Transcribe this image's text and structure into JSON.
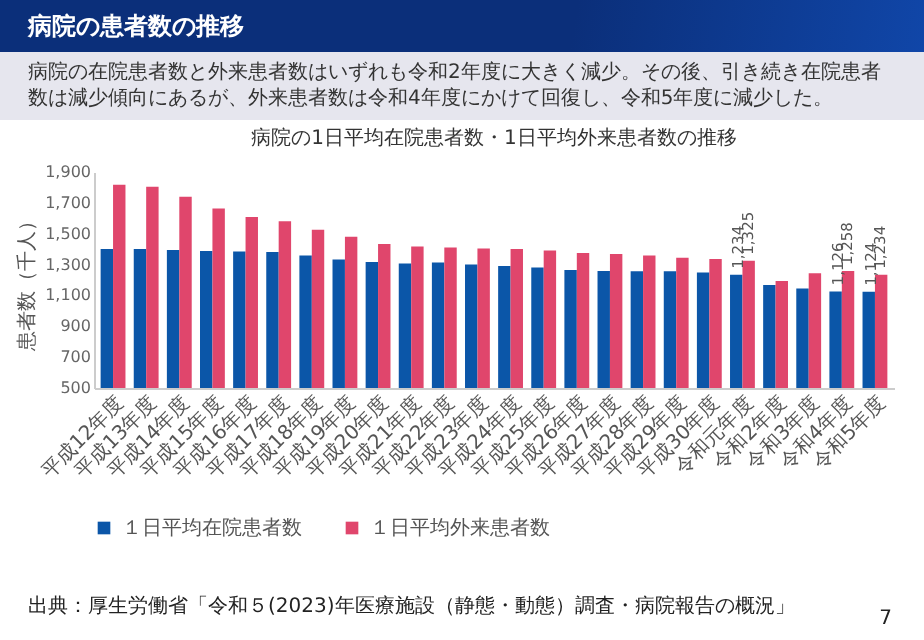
{
  "chart_data": {
    "type": "bar",
    "title": "病院の患者数の推移",
    "subtitle": "病院の1日平均在院患者数・1日平均外来患者数の推移",
    "annotations": [
      "病院の在院患者数と外来患者数はいずれも令和2年度に大きく減少。その後、引き続き在院患者数は減少傾向にあるが、外来患者数は令和4年度にかけて回復し、令和5年度に減少した。",
      "出典：厚生労働省「令和５(2023)年医療施設（静態・動態）調査・病院報告の概況」",
      "7"
    ],
    "ylabel": "患者数（千人）",
    "categories": [
      "平成12年度",
      "平成13年度",
      "平成14年度",
      "平成15年度",
      "平成16年度",
      "平成17年度",
      "平成18年度",
      "平成19年度",
      "平成20年度",
      "平成21年度",
      "平成22年度",
      "平成23年度",
      "平成24年度",
      "平成25年度",
      "平成26年度",
      "平成27年度",
      "平成28年度",
      "平成29年度",
      "平成30年度",
      "令和元年度",
      "令和2年度",
      "令和3年度",
      "令和4年度",
      "令和5年度"
    ],
    "series": [
      {
        "name": "１日平均在院患者数",
        "color": "#0b56a8",
        "values": [
          1401,
          1401,
          1394,
          1388,
          1384,
          1381,
          1358,
          1333,
          1317,
          1307,
          1314,
          1301,
          1291,
          1281,
          1265,
          1259,
          1256,
          1256,
          1249,
          1234,
          1167,
          1145,
          1126,
          1124
        ],
        "value_labels": [
          null,
          null,
          null,
          null,
          null,
          null,
          null,
          null,
          null,
          null,
          null,
          null,
          null,
          null,
          null,
          null,
          null,
          null,
          null,
          "1,234",
          null,
          null,
          "1,126",
          "1,124"
        ]
      },
      {
        "name": "１日平均外来患者数",
        "color": "#e0466c",
        "values": [
          1817,
          1804,
          1740,
          1663,
          1609,
          1580,
          1526,
          1481,
          1433,
          1417,
          1411,
          1404,
          1401,
          1391,
          1375,
          1369,
          1358,
          1345,
          1336,
          1325,
          1193,
          1244,
          1258,
          1234
        ],
        "value_labels": [
          null,
          null,
          null,
          null,
          null,
          null,
          null,
          null,
          null,
          null,
          null,
          null,
          null,
          null,
          null,
          null,
          null,
          null,
          null,
          "1,325",
          null,
          null,
          "1,258",
          "1,234"
        ]
      }
    ],
    "ylim": [
      500,
      1900
    ],
    "yticks": [
      {
        "value": 500,
        "label": "500"
      },
      {
        "value": 700,
        "label": "700"
      },
      {
        "value": 900,
        "label": "900"
      },
      {
        "value": 1100,
        "label": "1,100"
      },
      {
        "value": 1300,
        "label": "1,300"
      },
      {
        "value": 1500,
        "label": "1,500"
      },
      {
        "value": 1700,
        "label": "1,700"
      },
      {
        "value": 1900,
        "label": "1,900"
      }
    ],
    "legend": "bottom"
  }
}
